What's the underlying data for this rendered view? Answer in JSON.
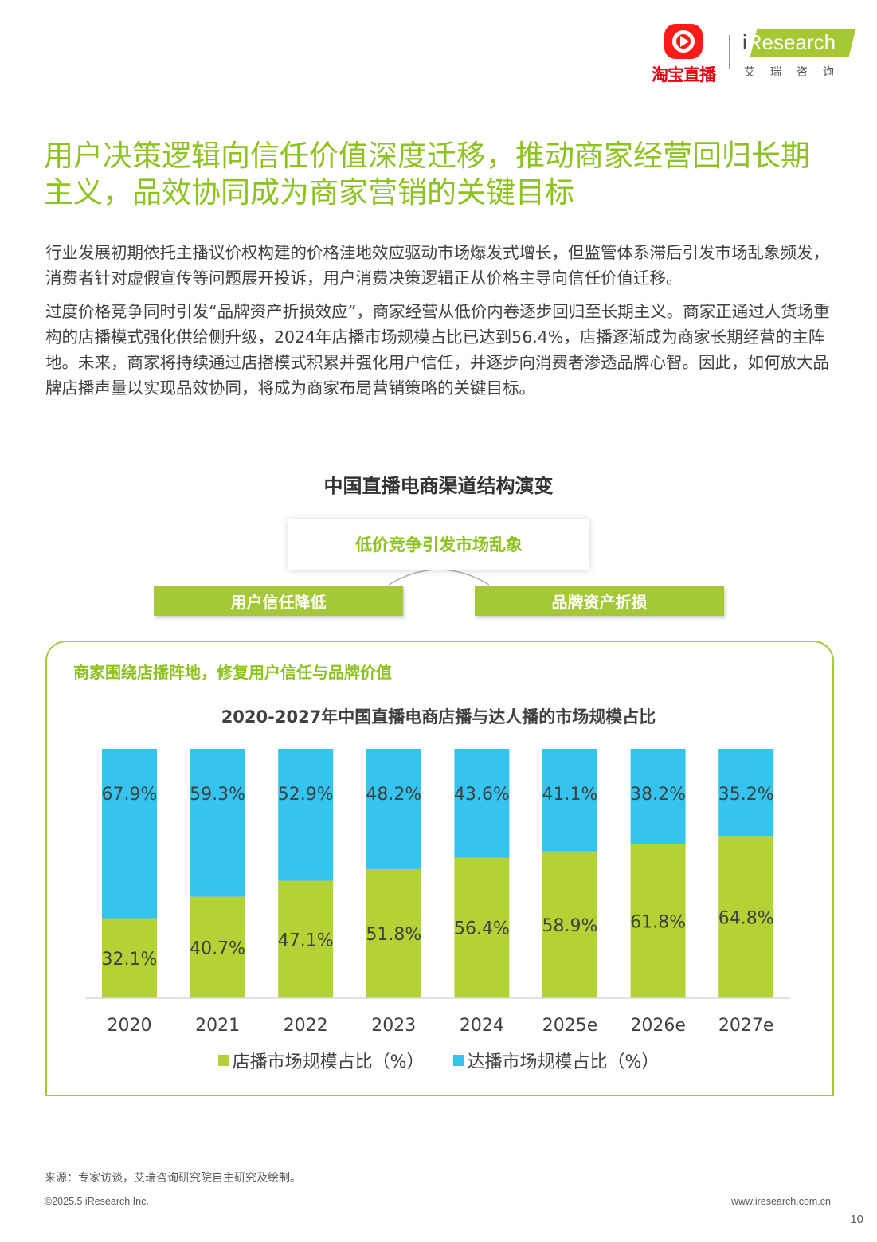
{
  "header": {
    "taobao_logo_text": "淘宝直播",
    "iresearch_logo_i": "i",
    "iresearch_logo_rest": "Research",
    "iresearch_logo_cn": "艾瑞咨询"
  },
  "title": "用户决策逻辑向信任价值深度迁移，推动商家经营回归长期主义，品效协同成为商家营销的关键目标",
  "paragraphs": [
    "行业发展初期依托主播议价权构建的价格洼地效应驱动市场爆发式增长，但监管体系滞后引发市场乱象频发，消费者针对虚假宣传等问题展开投诉，用户消费决策逻辑正从价格主导向信任价值迁移。",
    "过度价格竞争同时引发“品牌资产折损效应”，商家经营从低价内卷逐步回归至长期主义。商家正通过人货场重构的店播模式强化供给侧升级，2024年店播市场规模占比已达到56.4%，店播逐渐成为商家长期经营的主阵地。未来，商家将持续通过店播模式积累并强化用户信任，并逐步向消费者渗透品牌心智。因此，如何放大品牌店播声量以实现品效协同，将成为商家布局营销策略的关键目标。"
  ],
  "diagram": {
    "title": "中国直播电商渠道结构演变",
    "top_box": "低价竞争引发市场乱象",
    "left_bar": "用户信任降低",
    "right_bar": "品牌资产折损",
    "panel_subtitle": "商家围绕店播阵地，修复用户信任与品牌价值"
  },
  "chart_data": {
    "type": "bar",
    "stacked": true,
    "title": "2020-2027年中国直播电商店播与达人播的市场规模占比",
    "categories": [
      "2020",
      "2021",
      "2022",
      "2023",
      "2024",
      "2025e",
      "2026e",
      "2027e"
    ],
    "series": [
      {
        "name": "店播市场规模占比（%）",
        "color": "#b2d235",
        "values": [
          32.1,
          40.7,
          47.1,
          51.8,
          56.4,
          58.9,
          61.8,
          64.8
        ],
        "labels": [
          "32.1%",
          "40.7%",
          "47.1%",
          "51.8%",
          "56.4%",
          "58.9%",
          "61.8%",
          "64.8%"
        ]
      },
      {
        "name": "达播市场规模占比（%）",
        "color": "#35c4ef",
        "values": [
          67.9,
          59.3,
          52.9,
          48.2,
          43.6,
          41.1,
          38.2,
          35.2
        ],
        "labels": [
          "67.9%",
          "59.3%",
          "52.9%",
          "48.2%",
          "43.6%",
          "41.1%",
          "38.2%",
          "35.2%"
        ]
      }
    ],
    "ylim": [
      0,
      100
    ],
    "legend_position": "bottom",
    "grid": false
  },
  "footer": {
    "source": "来源：专家访谈，艾瑞咨询研究院自主研究及绘制。",
    "copyright": "©2025.5 iResearch Inc.",
    "website": "www.iresearch.com.cn",
    "page_number": "10"
  }
}
